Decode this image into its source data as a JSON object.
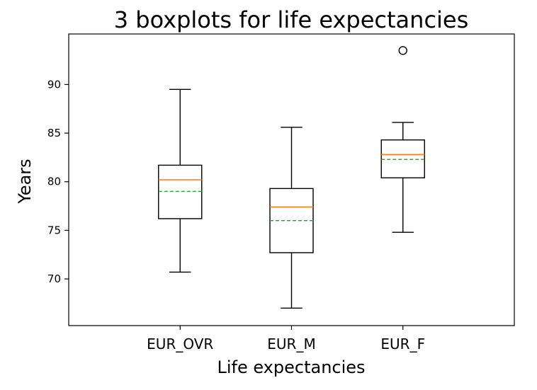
{
  "chart_data": {
    "type": "box",
    "title": "3 boxplots for life expectancies",
    "xlabel": "Life expectancies",
    "ylabel": "Years",
    "categories": [
      "EUR_OVR",
      "EUR_M",
      "EUR_F"
    ],
    "boxes": [
      {
        "category": "EUR_OVR",
        "whisker_low": 70.7,
        "q1": 76.2,
        "median": 80.2,
        "mean": 79.0,
        "q3": 81.7,
        "whisker_high": 89.5,
        "outliers": []
      },
      {
        "category": "EUR_M",
        "whisker_low": 67.0,
        "q1": 72.7,
        "median": 77.4,
        "mean": 76.0,
        "q3": 79.3,
        "whisker_high": 85.6,
        "outliers": []
      },
      {
        "category": "EUR_F",
        "whisker_low": 74.8,
        "q1": 80.4,
        "median": 82.8,
        "mean": 82.3,
        "q3": 84.3,
        "whisker_high": 86.1,
        "outliers": [
          93.5
        ]
      }
    ],
    "ylim": [
      65.2,
      95.2
    ],
    "yticks": [
      70,
      75,
      80,
      85,
      90
    ],
    "grid": false,
    "colors": {
      "box": "#000000",
      "median": "#ff7f0e",
      "mean": "#2ca02c",
      "frame": "#000000"
    }
  }
}
